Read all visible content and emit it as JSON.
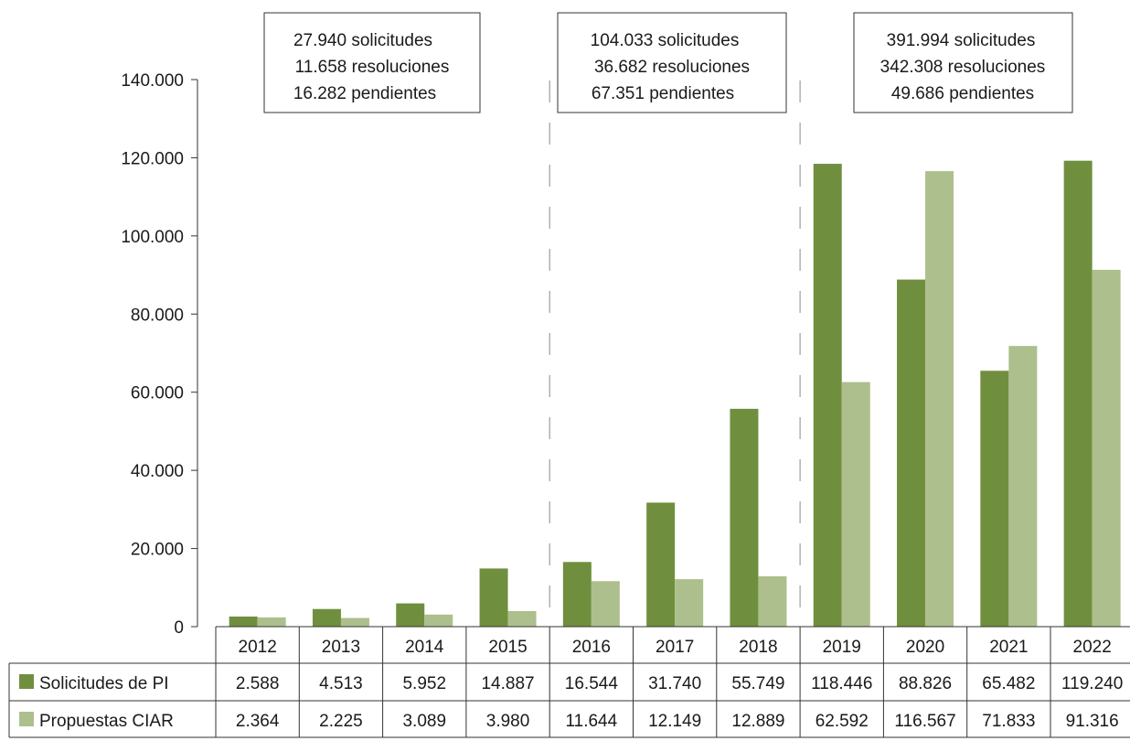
{
  "chart_data": {
    "type": "bar",
    "categories": [
      "2012",
      "2013",
      "2014",
      "2015",
      "2016",
      "2017",
      "2018",
      "2019",
      "2020",
      "2021",
      "2022"
    ],
    "series": [
      {
        "name": "Solicitudes de PI",
        "color": "#6f8f3e",
        "values": [
          2588,
          4513,
          5952,
          14887,
          16544,
          31740,
          55749,
          118446,
          88826,
          65482,
          119240
        ],
        "labels": [
          "2.588",
          "4.513",
          "5.952",
          "14.887",
          "16.544",
          "31.740",
          "55.749",
          "118.446",
          "88.826",
          "65.482",
          "119.240"
        ]
      },
      {
        "name": "Propuestas CIAR",
        "color": "#adbf8c",
        "values": [
          2364,
          2225,
          3089,
          3980,
          11644,
          12149,
          12889,
          62592,
          116567,
          71833,
          91316
        ],
        "labels": [
          "2.364",
          "2.225",
          "3.089",
          "3.980",
          "11.644",
          "12.149",
          "12.889",
          "62.592",
          "116.567",
          "71.833",
          "91.316"
        ]
      }
    ],
    "ylim": [
      0,
      140000
    ],
    "yticks": [
      0,
      20000,
      40000,
      60000,
      80000,
      100000,
      120000,
      140000
    ],
    "ytick_labels": [
      "0",
      "20.000",
      "40.000",
      "60.000",
      "80.000",
      "100.000",
      "120.000",
      "140.000"
    ],
    "data_table": true,
    "separators_after": [
      "2015",
      "2018"
    ],
    "annotations": [
      {
        "lines": [
          "27.940 solicitudes",
          "11.658 resoluciones",
          "16.282 pendientes"
        ]
      },
      {
        "lines": [
          "104.033 solicitudes",
          "36.682 resoluciones",
          "67.351 pendientes"
        ]
      },
      {
        "lines": [
          "391.994 solicitudes",
          "342.308 resoluciones",
          "49.686 pendientes"
        ]
      }
    ]
  }
}
